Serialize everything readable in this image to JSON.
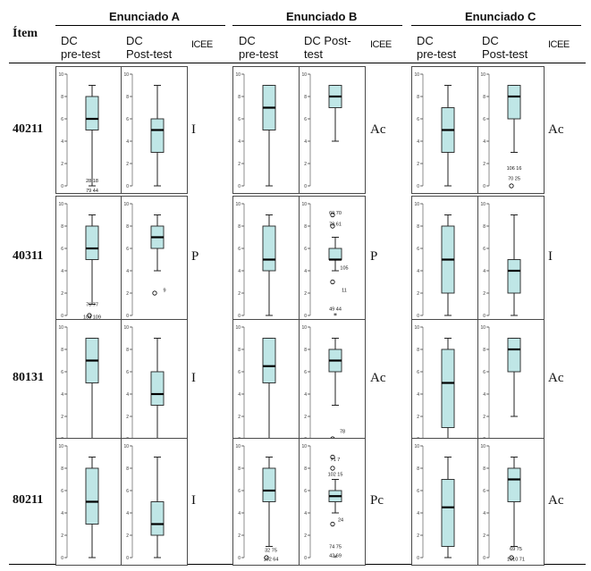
{
  "header": {
    "item_col": "Ítem",
    "groups": [
      "Enunciado A",
      "Enunciado B",
      "Enunciado C"
    ],
    "sub": {
      "pre": "DC\npre-test",
      "pre_b": "DC\npre-test",
      "post_a": "DC\nPost-test",
      "post_b": "DC Post-\ntest",
      "post_c": "DC\nPost-test",
      "icee": "ICEE"
    }
  },
  "colors": {
    "box_fill": "#bfe6e6",
    "box_stroke": "#222222",
    "frame": "#4a4a4a"
  },
  "rows": [
    {
      "item": "40211",
      "icee": [
        "I",
        "Ac",
        "Ac"
      ]
    },
    {
      "item": "40311",
      "icee": [
        "P",
        "P",
        "I"
      ]
    },
    {
      "item": "80131",
      "icee": [
        "I",
        "Ac",
        "Ac"
      ]
    },
    {
      "item": "80211",
      "icee": [
        "I",
        "Pc",
        "Ac"
      ]
    }
  ],
  "chart_data": {
    "type": "boxplot",
    "ylim": [
      0,
      10
    ],
    "yticks": [
      "0",
      "2",
      "4",
      "6",
      "8",
      "10"
    ],
    "panels": [
      [
        {
          "min": 0,
          "q1": 5,
          "median": 6,
          "q3": 8,
          "max": 9,
          "outliers": [],
          "labels": [
            {
              "v": 0.5,
              "t": "28 18",
              "x": 0
            },
            {
              "v": -0.4,
              "t": "79 44",
              "x": 0
            }
          ]
        },
        {
          "min": 0,
          "q1": 3,
          "median": 5,
          "q3": 6,
          "max": 9,
          "outliers": [],
          "labels": []
        },
        {
          "min": 0,
          "q1": 5,
          "median": 7,
          "q3": 9,
          "max": 9,
          "outliers": [],
          "labels": []
        },
        {
          "min": 4,
          "q1": 7,
          "median": 8,
          "q3": 9,
          "max": 9,
          "outliers": [],
          "labels": []
        },
        {
          "min": 0,
          "q1": 3,
          "median": 5,
          "q3": 7,
          "max": 9,
          "outliers": [],
          "labels": []
        },
        {
          "min": 3,
          "q1": 6,
          "median": 8,
          "q3": 9,
          "max": 9,
          "outliers": [
            {
              "v": 0,
              "s": "o"
            }
          ],
          "labels": [
            {
              "v": 1.6,
              "t": "106 16",
              "x": 0
            },
            {
              "v": 0.7,
              "t": "70 25",
              "x": 0
            }
          ]
        }
      ],
      [
        {
          "min": 1,
          "q1": 5,
          "median": 6,
          "q3": 8,
          "max": 9,
          "outliers": [
            {
              "v": 0,
              "s": "o"
            }
          ],
          "labels": [
            {
              "v": 1.0,
              "t": "76 77",
              "x": 0
            },
            {
              "v": -0.1,
              "t": "103 109",
              "x": 0
            }
          ]
        },
        {
          "min": 4,
          "q1": 6,
          "median": 7,
          "q3": 8,
          "max": 9,
          "outliers": [
            {
              "v": 2,
              "s": "o"
            }
          ],
          "labels": [
            {
              "v": 2.3,
              "t": "9",
              "x": 8
            }
          ]
        },
        {
          "min": 0,
          "q1": 4,
          "median": 5,
          "q3": 8,
          "max": 9,
          "outliers": [],
          "labels": []
        },
        {
          "min": 4,
          "q1": 5,
          "median": 5,
          "q3": 6,
          "max": 7,
          "outliers": [
            {
              "v": 8,
              "s": "o"
            },
            {
              "v": 9,
              "s": "o"
            },
            {
              "v": 3,
              "s": "o"
            },
            {
              "v": 0,
              "s": "*"
            }
          ],
          "labels": [
            {
              "v": 9.2,
              "t": "69 70",
              "x": 0
            },
            {
              "v": 8.2,
              "t": "78 61",
              "x": 0
            },
            {
              "v": 4.3,
              "t": "105",
              "x": 10
            },
            {
              "v": 2.3,
              "t": "11",
              "x": 10
            },
            {
              "v": 0.6,
              "t": "49 44",
              "x": 0
            }
          ]
        },
        {
          "min": 0,
          "q1": 2,
          "median": 5,
          "q3": 8,
          "max": 9,
          "outliers": [],
          "labels": []
        },
        {
          "min": 0,
          "q1": 2,
          "median": 4,
          "q3": 5,
          "max": 9,
          "outliers": [],
          "labels": []
        }
      ],
      [
        {
          "min": 0,
          "q1": 5,
          "median": 7,
          "q3": 9,
          "max": 9,
          "outliers": [],
          "labels": []
        },
        {
          "min": 0,
          "q1": 3,
          "median": 4,
          "q3": 6,
          "max": 9,
          "outliers": [],
          "labels": []
        },
        {
          "min": 0,
          "q1": 5,
          "median": 6.5,
          "q3": 9,
          "max": 9,
          "outliers": [],
          "labels": []
        },
        {
          "min": 3,
          "q1": 6,
          "median": 7,
          "q3": 8,
          "max": 9,
          "outliers": [
            {
              "v": 0,
              "s": "o"
            }
          ],
          "labels": [
            {
              "v": 0.7,
              "t": "78",
              "x": 8
            }
          ]
        },
        {
          "min": 0,
          "q1": 1,
          "median": 5,
          "q3": 8,
          "max": 9,
          "outliers": [],
          "labels": []
        },
        {
          "min": 2,
          "q1": 6,
          "median": 8,
          "q3": 9,
          "max": 9,
          "outliers": [],
          "labels": []
        }
      ],
      [
        {
          "min": 0,
          "q1": 3,
          "median": 5,
          "q3": 8,
          "max": 9,
          "outliers": [],
          "labels": []
        },
        {
          "min": 0,
          "q1": 2,
          "median": 3,
          "q3": 5,
          "max": 9,
          "outliers": [],
          "labels": []
        },
        {
          "min": 1,
          "q1": 5,
          "median": 6,
          "q3": 8,
          "max": 9,
          "outliers": [
            {
              "v": 0,
              "s": "o"
            }
          ],
          "labels": [
            {
              "v": 0.7,
              "t": "32 75",
              "x": 2
            },
            {
              "v": -0.1,
              "t": "102 64",
              "x": 2
            }
          ]
        },
        {
          "min": 4,
          "q1": 5,
          "median": 5.5,
          "q3": 6,
          "max": 7,
          "outliers": [
            {
              "v": 9,
              "s": "o"
            },
            {
              "v": 8,
              "s": "o"
            },
            {
              "v": 3,
              "s": "o"
            },
            {
              "v": 0,
              "s": "*"
            }
          ],
          "labels": [
            {
              "v": 8.8,
              "t": "71 7",
              "x": 0
            },
            {
              "v": 7.5,
              "t": "102 15",
              "x": 0
            },
            {
              "v": 3.4,
              "t": "24",
              "x": 6
            },
            {
              "v": 1.0,
              "t": "74 75",
              "x": 0
            },
            {
              "v": 0.2,
              "t": "42 69",
              "x": 0
            }
          ]
        },
        {
          "min": 0,
          "q1": 1,
          "median": 4.5,
          "q3": 7,
          "max": 9,
          "outliers": [],
          "labels": []
        },
        {
          "min": 1,
          "q1": 5,
          "median": 7,
          "q3": 8,
          "max": 9,
          "outliers": [
            {
              "v": 0,
              "s": "o"
            }
          ],
          "labels": [
            {
              "v": 0.8,
              "t": "69 75",
              "x": 2
            },
            {
              "v": -0.1,
              "t": "1010 71",
              "x": 2
            }
          ]
        }
      ]
    ]
  }
}
